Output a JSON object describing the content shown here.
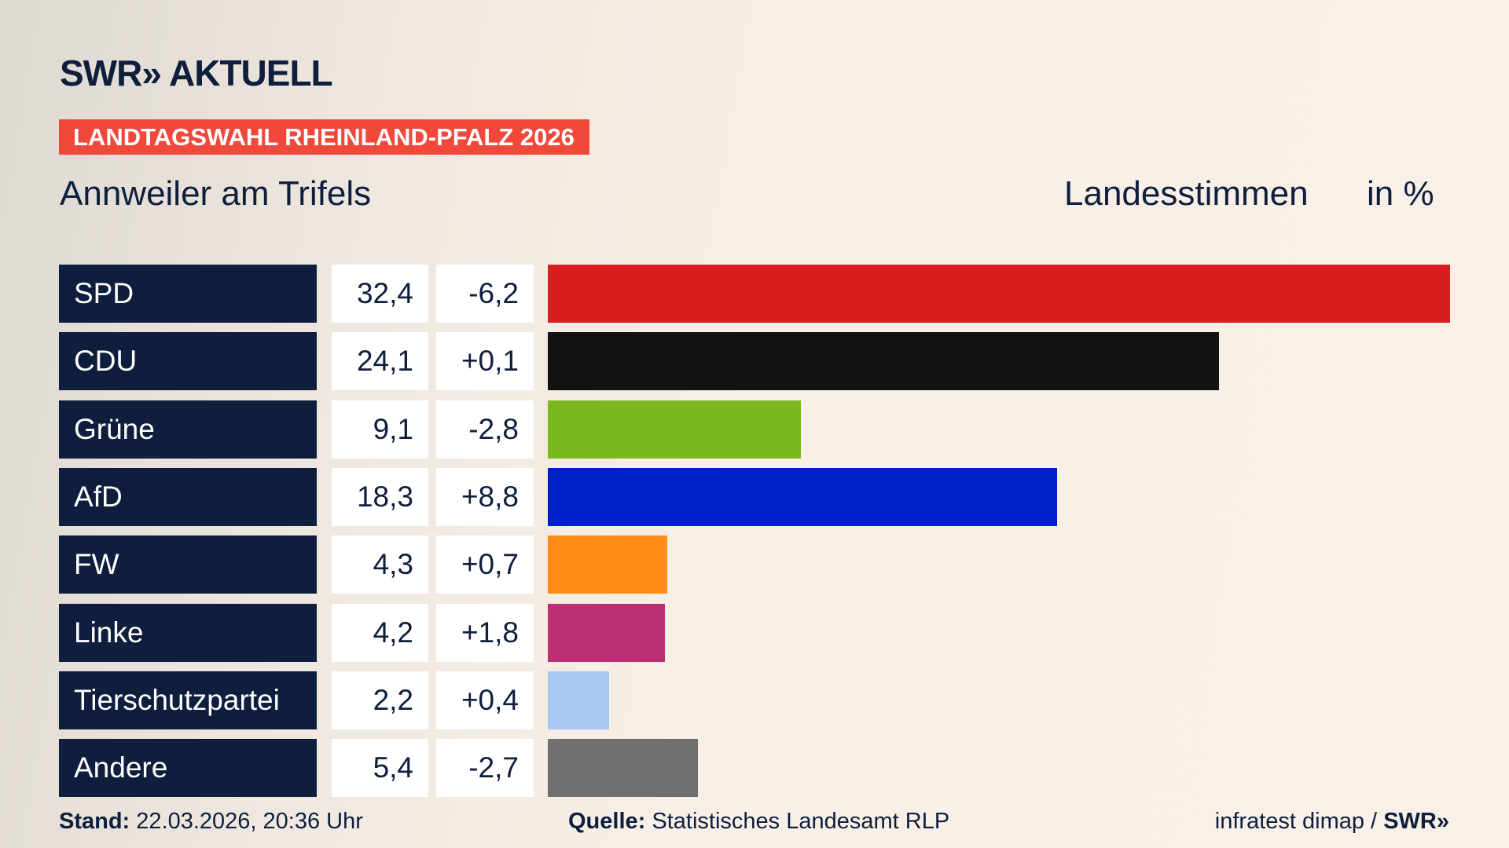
{
  "header": {
    "logo_text": "SWR",
    "logo_suffix": "AKTUELL",
    "banner": "LANDTAGSWAHL RHEINLAND-PFALZ 2026"
  },
  "chart_data": {
    "type": "bar",
    "title": "Annweiler am Trifels",
    "subtitle": "Landesstimmen",
    "unit": "in %",
    "categories": [
      "SPD",
      "CDU",
      "Grüne",
      "AfD",
      "FW",
      "Linke",
      "Tierschutzpartei",
      "Andere"
    ],
    "values": [
      32.4,
      24.1,
      9.1,
      18.3,
      4.3,
      4.2,
      2.2,
      5.4
    ],
    "value_labels": [
      "32,4",
      "24,1",
      "9,1",
      "18,3",
      "4,3",
      "4,2",
      "2,2",
      "5,4"
    ],
    "changes": [
      -6.2,
      0.1,
      -2.8,
      8.8,
      0.7,
      1.8,
      0.4,
      -2.7
    ],
    "change_labels": [
      "-6,2",
      "+0,1",
      "-2,8",
      "+8,8",
      "+0,7",
      "+1,8",
      "+0,4",
      "-2,7"
    ],
    "colors": [
      "#d71f1f",
      "#121212",
      "#7aba1e",
      "#0021c7",
      "#ff8c17",
      "#bc2f74",
      "#a9c8ef",
      "#707070"
    ]
  },
  "footer": {
    "stand_label": "Stand:",
    "stand": "22.03.2026, 20:36 Uhr",
    "source_label": "Quelle:",
    "source": "Statistisches Landesamt RLP",
    "credit": "infratest dimap /",
    "credit_logo": "SWR"
  }
}
